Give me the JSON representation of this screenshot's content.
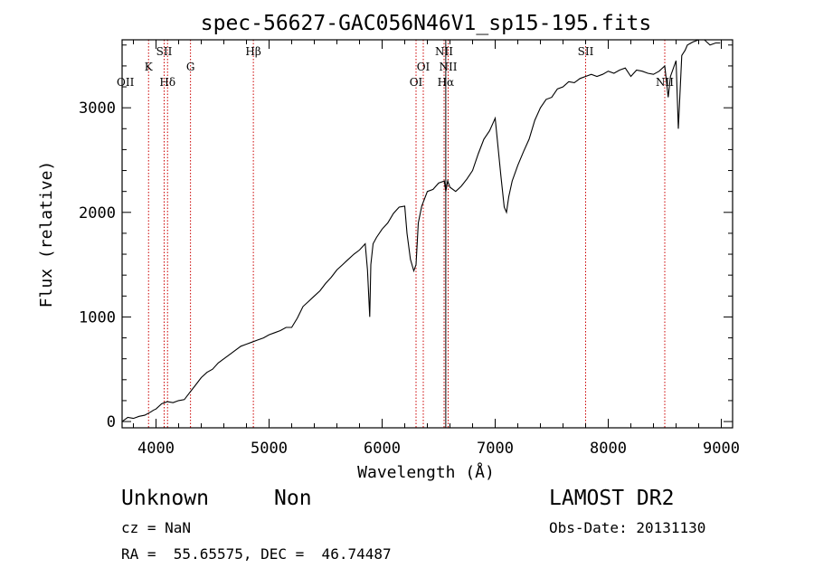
{
  "chart_data": {
    "type": "line",
    "title": "spec-56627-GAC056N46V1_sp15-195.fits",
    "xlabel": "Wavelength (Å)",
    "ylabel": "Flux (relative)",
    "xlim": [
      3700,
      9100
    ],
    "ylim": [
      -60,
      3650
    ],
    "xticks": [
      4000,
      5000,
      6000,
      7000,
      8000,
      9000
    ],
    "yticks": [
      0,
      1000,
      2000,
      3000
    ],
    "series": [
      {
        "x": [
          3700,
          3750,
          3800,
          3850,
          3900,
          3950,
          3980,
          4000,
          4050,
          4100,
          4150,
          4200,
          4250,
          4300,
          4350,
          4400,
          4450,
          4500,
          4550,
          4600,
          4650,
          4700,
          4750,
          4800,
          4850,
          4900,
          4950,
          5000,
          5050,
          5100,
          5150,
          5200,
          5250,
          5300,
          5350,
          5400,
          5450,
          5500,
          5550,
          5600,
          5650,
          5700,
          5750,
          5800,
          5850,
          5870,
          5890,
          5900,
          5920,
          5950,
          6000,
          6050,
          6100,
          6150,
          6200,
          6220,
          6250,
          6280,
          6300,
          6320,
          6350,
          6400,
          6450,
          6500,
          6550,
          6563,
          6580,
          6600,
          6650,
          6700,
          6750,
          6800,
          6850,
          6900,
          6950,
          7000,
          7050,
          7080,
          7100,
          7120,
          7150,
          7200,
          7250,
          7300,
          7350,
          7400,
          7450,
          7500,
          7550,
          7600,
          7650,
          7700,
          7750,
          7800,
          7850,
          7900,
          7950,
          8000,
          8050,
          8100,
          8150,
          8200,
          8250,
          8300,
          8350,
          8400,
          8450,
          8500,
          8530,
          8550,
          8600,
          8620,
          8650,
          8680,
          8700,
          8750,
          8800,
          8850,
          8900,
          8950,
          8990
        ],
        "y": [
          0,
          40,
          30,
          50,
          60,
          90,
          110,
          120,
          170,
          190,
          180,
          200,
          210,
          280,
          350,
          420,
          470,
          500,
          560,
          600,
          640,
          680,
          720,
          740,
          760,
          780,
          800,
          830,
          850,
          870,
          900,
          900,
          990,
          1100,
          1150,
          1200,
          1250,
          1320,
          1380,
          1450,
          1500,
          1550,
          1600,
          1640,
          1700,
          1450,
          1000,
          1500,
          1700,
          1760,
          1840,
          1900,
          1990,
          2050,
          2060,
          1800,
          1550,
          1440,
          1500,
          1900,
          2060,
          2200,
          2220,
          2280,
          2300,
          2200,
          2300,
          2240,
          2200,
          2250,
          2320,
          2400,
          2560,
          2700,
          2780,
          2900,
          2350,
          2050,
          2000,
          2150,
          2300,
          2450,
          2580,
          2700,
          2880,
          3000,
          3080,
          3100,
          3180,
          3200,
          3250,
          3240,
          3280,
          3300,
          3320,
          3300,
          3320,
          3350,
          3330,
          3360,
          3380,
          3300,
          3360,
          3350,
          3330,
          3320,
          3350,
          3400,
          3100,
          3300,
          3450,
          2800,
          3500,
          3550,
          3600,
          3630,
          3650,
          3650,
          3600,
          3620,
          3620
        ]
      }
    ],
    "line_labels": [
      {
        "wavelength": 3934,
        "labels": [
          "K"
        ],
        "row": 2,
        "style": "dotted"
      },
      {
        "wavelength": 4072,
        "labels": [
          "SII"
        ],
        "row": 1,
        "style": "dotted"
      },
      {
        "wavelength": 4102,
        "labels": [
          "Hδ"
        ],
        "row": 3,
        "style": "dotted"
      },
      {
        "wavelength": 4305,
        "labels": [
          "G"
        ],
        "row": 2,
        "style": "dotted"
      },
      {
        "wavelength": 4861,
        "labels": [
          "Hβ"
        ],
        "row": 1,
        "style": "dotted"
      },
      {
        "wavelength": 6300,
        "labels": [
          "OI"
        ],
        "row": 3,
        "style": "dotted"
      },
      {
        "wavelength": 6364,
        "labels": [
          "OI"
        ],
        "row": 2,
        "style": "dotted"
      },
      {
        "wavelength": 6548,
        "labels": [
          "NII"
        ],
        "row": 1,
        "style": "dotted"
      },
      {
        "wavelength": 6563,
        "labels": [
          "Hα"
        ],
        "row": 3,
        "style": "solid"
      },
      {
        "wavelength": 6584,
        "labels": [
          "NII"
        ],
        "row": 2,
        "style": "dotted"
      },
      {
        "wavelength": 7800,
        "labels": [
          "SII"
        ],
        "row": 1,
        "style": "dotted"
      },
      {
        "wavelength": 8500,
        "labels": [
          "NII"
        ],
        "row": 3,
        "style": "dotted"
      }
    ],
    "edge_labels": [
      "OII"
    ],
    "colors": {
      "spectrum": "#000000",
      "lines": "#cc0000"
    }
  },
  "info": {
    "class": "Unknown",
    "subclass": "Non",
    "cz": "cz = NaN",
    "radec": "RA =  55.65575, DEC =  46.74487",
    "survey": "LAMOST DR2",
    "obs_date": "Obs-Date: 20131130"
  }
}
